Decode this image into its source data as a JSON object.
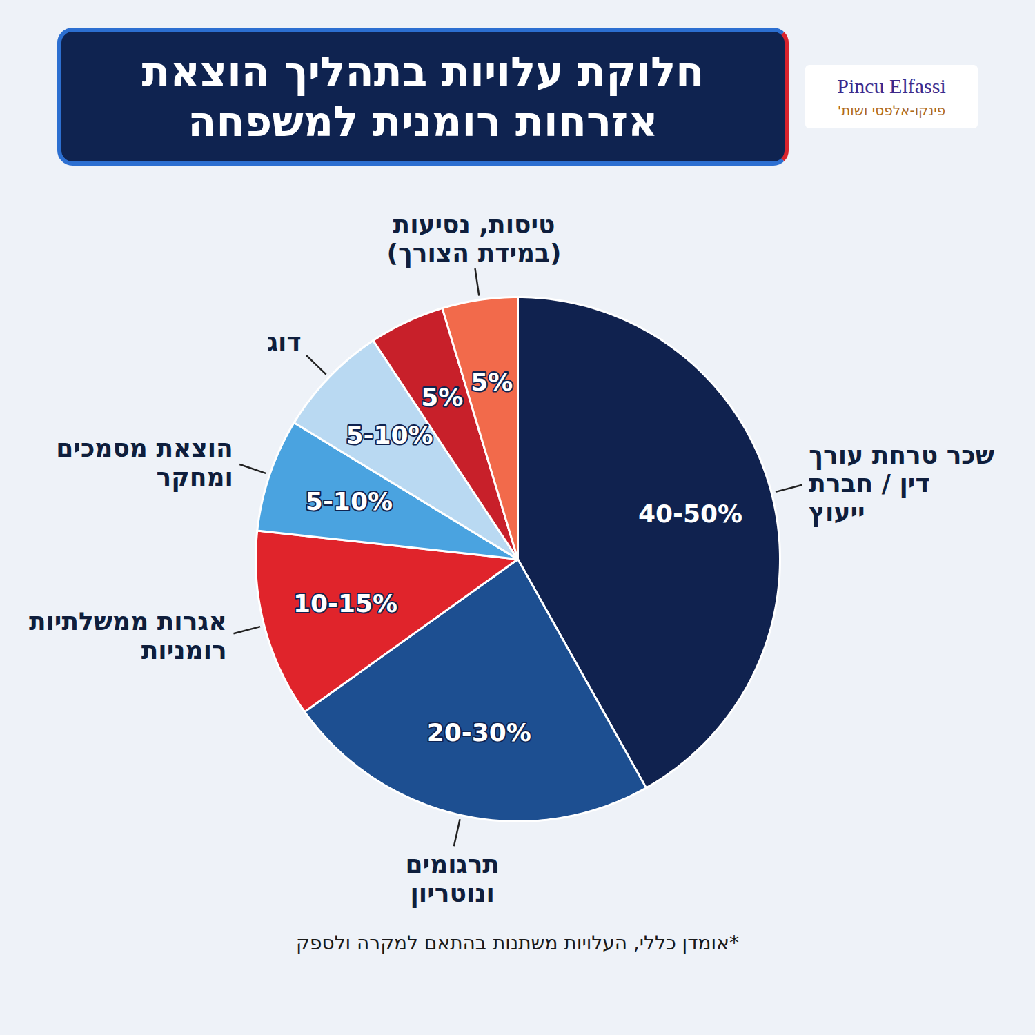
{
  "chart_data": {
    "type": "pie",
    "title": "חלוקת עלויות בתהליך הוצאת אזרחות רומנית למשפחה",
    "categories": [
      "שכר טרחת עורך דין / חברת ייעוץ",
      "תרגומים ונוטריון",
      "אגרות ממשלתיות רומניות",
      "הוצאת מסמכים ומחקר",
      "דוג",
      null,
      "טיסות, נסיעות (במידת הצורך)"
    ],
    "values": [
      45,
      25,
      12.5,
      7.5,
      7.5,
      5,
      5
    ],
    "value_labels": [
      "40-50%",
      "20-30%",
      "10-15%",
      "5-10%",
      "5-10%",
      "5%",
      "5%"
    ],
    "colors": [
      "#10224f",
      "#1d4f91",
      "#e0242b",
      "#4aa3e0",
      "#b9d9f2",
      "#c8202a",
      "#f26a4b"
    ],
    "data_labels": true,
    "annotations": [
      "*אומדן כללי, העלויות משתנות בהתאם למקרה ולספק"
    ]
  },
  "logo": {
    "name_en": "Pincu Elfassi",
    "name_he": "פינקו-אלפסי ושות'"
  }
}
